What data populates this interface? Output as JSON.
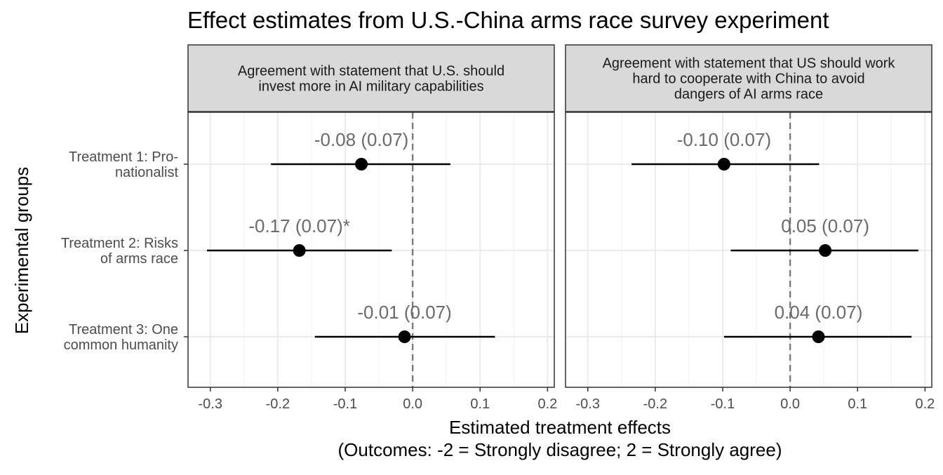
{
  "chart_data": {
    "type": "forest",
    "title": "Effect estimates from U.S.-China arms race survey experiment",
    "xlabel": "Estimated treatment effects",
    "xlabel_sub": "(Outcomes: -2 = Strongly disagree; 2 = Strongly agree)",
    "ylabel": "Experimental groups",
    "xlim": [
      -0.333,
      0.21
    ],
    "xticks": [
      -0.3,
      -0.2,
      -0.1,
      0.0,
      0.1,
      0.2
    ],
    "xtick_labels": [
      "-0.3",
      "-0.2",
      "-0.1",
      "0.0",
      "0.1",
      "0.2"
    ],
    "reference_line_x": 0.0,
    "grid": true,
    "groups": [
      {
        "label_lines": [
          "Treatment 1: Pro-",
          "nationalist"
        ]
      },
      {
        "label_lines": [
          "Treatment 2: Risks",
          "of arms race"
        ]
      },
      {
        "label_lines": [
          "Treatment 3: One",
          "common humanity"
        ]
      }
    ],
    "panels": [
      {
        "strip_lines": [
          "Agreement with statement that U.S. should",
          "invest more in AI military capabilities"
        ],
        "estimates": [
          {
            "group": 0,
            "estimate": -0.076,
            "ci_low": -0.21,
            "ci_high": 0.056,
            "label": "-0.08 (0.07)"
          },
          {
            "group": 1,
            "estimate": -0.168,
            "ci_low": -0.305,
            "ci_high": -0.031,
            "label": "-0.17 (0.07)*"
          },
          {
            "group": 2,
            "estimate": -0.012,
            "ci_low": -0.145,
            "ci_high": 0.122,
            "label": "-0.01 (0.07)"
          }
        ]
      },
      {
        "strip_lines": [
          "Agreement with statement that US should work",
          "hard to cooperate with China to avoid",
          "dangers of AI arms race"
        ],
        "estimates": [
          {
            "group": 0,
            "estimate": -0.098,
            "ci_low": -0.235,
            "ci_high": 0.043,
            "label": "-0.10 (0.07)"
          },
          {
            "group": 1,
            "estimate": 0.052,
            "ci_low": -0.088,
            "ci_high": 0.19,
            "label": "0.05 (0.07)"
          },
          {
            "group": 2,
            "estimate": 0.042,
            "ci_low": -0.098,
            "ci_high": 0.18,
            "label": "0.04 (0.07)"
          }
        ]
      }
    ],
    "colors": {
      "point": "#000000",
      "interval": "#000000",
      "estimate_label": "#6b6b6b",
      "reference_line": "#7a7a7a",
      "strip_fill": "#d9d9d9",
      "strip_border": "#333333",
      "grid_major": "#ebebeb",
      "grid_minor": "#f4f4f4",
      "axis_text": "#4d4d4d",
      "title": "#000000"
    }
  }
}
